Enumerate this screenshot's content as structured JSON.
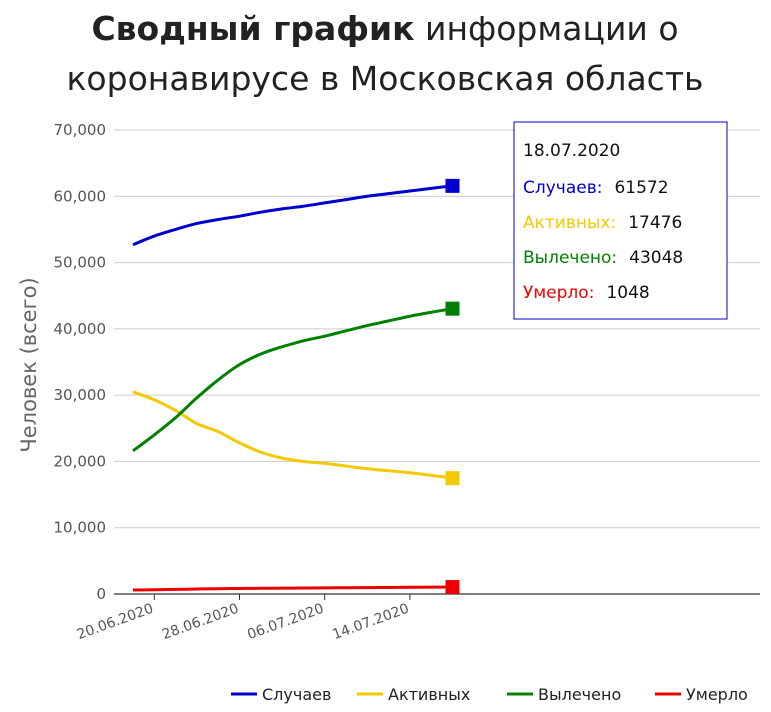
{
  "title": {
    "bold": "Сводный график",
    "rest_line1": " информации о",
    "line2": "коронавирусе в Московская область"
  },
  "chart_data": {
    "type": "line",
    "title": "Сводный график информации о коронавирусе в Московская область",
    "xlabel": "",
    "ylabel": "Человек (всего)",
    "ylim": [
      0,
      70000
    ],
    "y_ticks": [
      "0",
      "10,000",
      "20,000",
      "30,000",
      "40,000",
      "50,000",
      "60,000",
      "70,000"
    ],
    "x_ticks": [
      "20.06.2020",
      "28.06.2020",
      "06.07.2020",
      "14.07.2020"
    ],
    "x": [
      "18.06.2020",
      "20.06.2020",
      "22.06.2020",
      "24.06.2020",
      "26.06.2020",
      "28.06.2020",
      "30.06.2020",
      "02.07.2020",
      "04.07.2020",
      "06.07.2020",
      "08.07.2020",
      "10.07.2020",
      "12.07.2020",
      "14.07.2020",
      "16.07.2020",
      "18.07.2020"
    ],
    "grid": true,
    "legend_position": "bottom",
    "series": [
      {
        "name": "Случаев",
        "color": "#0000cc",
        "values": [
          52700,
          54000,
          55000,
          55900,
          56500,
          57000,
          57600,
          58100,
          58500,
          59000,
          59500,
          60000,
          60400,
          60800,
          61200,
          61572
        ]
      },
      {
        "name": "Активных",
        "color": "#f5c800",
        "values": [
          30500,
          29300,
          27700,
          25700,
          24500,
          22800,
          21400,
          20500,
          20000,
          19700,
          19300,
          18900,
          18600,
          18300,
          17900,
          17476
        ]
      },
      {
        "name": "Вылечено",
        "color": "#008000",
        "values": [
          21600,
          24000,
          26600,
          29600,
          32300,
          34600,
          36200,
          37300,
          38200,
          38900,
          39700,
          40500,
          41200,
          41900,
          42500,
          43048
        ]
      },
      {
        "name": "Умерло",
        "color": "#ee0000",
        "values": [
          600,
          650,
          700,
          750,
          800,
          830,
          860,
          880,
          900,
          920,
          950,
          970,
          990,
          1010,
          1030,
          1048
        ]
      }
    ]
  },
  "tooltip": {
    "date": "18.07.2020",
    "rows": [
      {
        "label": "Случаев:",
        "value": "61572",
        "color": "#0000cc"
      },
      {
        "label": "Активных:",
        "value": "17476",
        "color": "#f5c800"
      },
      {
        "label": "Вылечено:",
        "value": "43048",
        "color": "#008000"
      },
      {
        "label": "Умерло:",
        "value": "1048",
        "color": "#ee0000"
      }
    ]
  }
}
